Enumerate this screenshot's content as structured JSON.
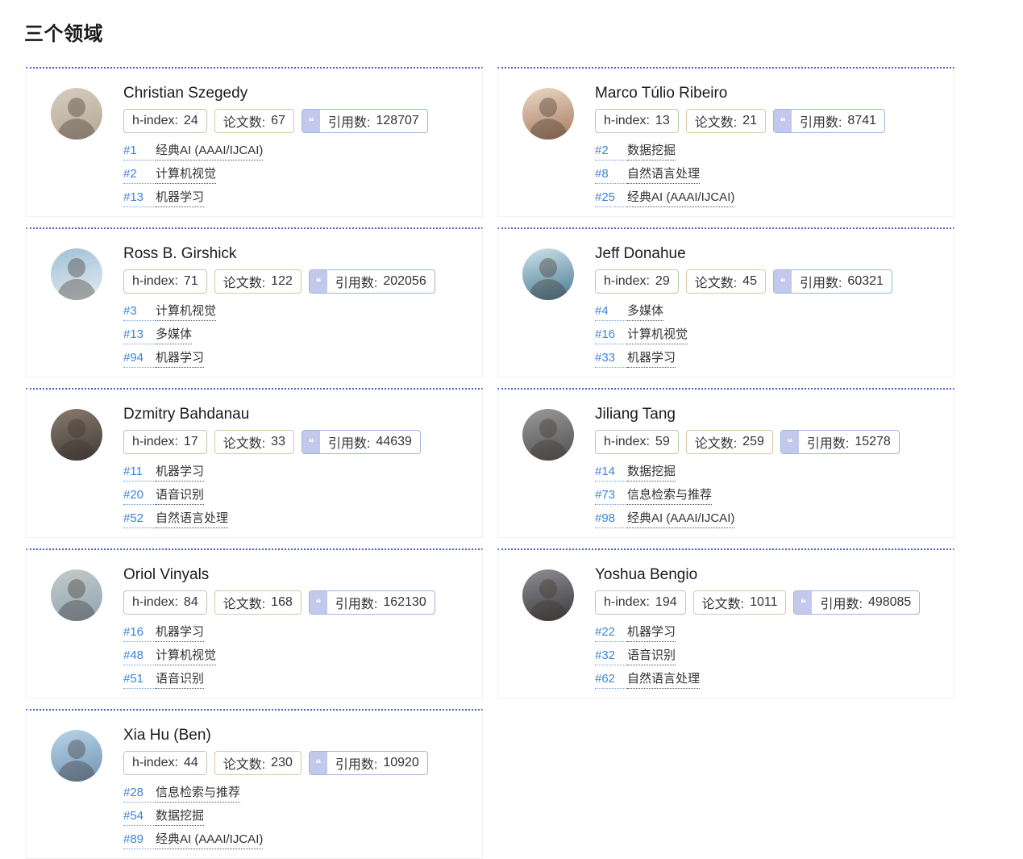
{
  "page": {
    "title": "三个领域"
  },
  "labels": {
    "h_index": "h-index:",
    "papers": "论文数:",
    "citations": "引用数:",
    "quote_icon": "❝"
  },
  "colors": {
    "card_top_border": "#4f5ec7",
    "card_border": "#f1f1f1",
    "h_index_border": "#bcc9ad",
    "papers_border": "#d9c8a3",
    "citations_border": "#9cb8de",
    "citations_icon_bg": "#c2c9ec",
    "rank_link_blue": "#3d84d8"
  },
  "researchers": [
    {
      "name": "Christian Szegedy",
      "h_index": "24",
      "papers": "67",
      "citations": "128707",
      "avatar_colors": [
        "#d8cdc0",
        "#b3a694"
      ],
      "ranks": [
        {
          "no": "#1",
          "field": "经典AI (AAAI/IJCAI)"
        },
        {
          "no": "#2",
          "field": "计算机视觉"
        },
        {
          "no": "#13",
          "field": "机器学习"
        }
      ]
    },
    {
      "name": "Marco Túlio Ribeiro",
      "h_index": "13",
      "papers": "21",
      "citations": "8741",
      "avatar_colors": [
        "#ead9c6",
        "#a87a5e"
      ],
      "ranks": [
        {
          "no": "#2",
          "field": "数据挖掘"
        },
        {
          "no": "#8",
          "field": "自然语言处理"
        },
        {
          "no": "#25",
          "field": "经典AI (AAAI/IJCAI)"
        }
      ]
    },
    {
      "name": "Ross B. Girshick",
      "h_index": "71",
      "papers": "122",
      "citations": "202056",
      "avatar_colors": [
        "#9fc0d8",
        "#e6ecef"
      ],
      "ranks": [
        {
          "no": "#3",
          "field": "计算机视觉"
        },
        {
          "no": "#13",
          "field": "多媒体"
        },
        {
          "no": "#94",
          "field": "机器学习"
        }
      ]
    },
    {
      "name": "Jeff Donahue",
      "h_index": "29",
      "papers": "45",
      "citations": "60321",
      "avatar_colors": [
        "#cfe2ea",
        "#467a92"
      ],
      "ranks": [
        {
          "no": "#4",
          "field": "多媒体"
        },
        {
          "no": "#16",
          "field": "计算机视觉"
        },
        {
          "no": "#33",
          "field": "机器学习"
        }
      ]
    },
    {
      "name": "Dzmitry Bahdanau",
      "h_index": "17",
      "papers": "33",
      "citations": "44639",
      "avatar_colors": [
        "#8a7b6d",
        "#3f3a35"
      ],
      "ranks": [
        {
          "no": "#11",
          "field": "机器学习"
        },
        {
          "no": "#20",
          "field": "语音识别"
        },
        {
          "no": "#52",
          "field": "自然语言处理"
        }
      ]
    },
    {
      "name": "Jiliang Tang",
      "h_index": "59",
      "papers": "259",
      "citations": "15278",
      "avatar_colors": [
        "#9a9a9a",
        "#4f4f4f"
      ],
      "ranks": [
        {
          "no": "#14",
          "field": "数据挖掘"
        },
        {
          "no": "#73",
          "field": "信息检索与推荐"
        },
        {
          "no": "#98",
          "field": "经典AI (AAAI/IJCAI)"
        }
      ]
    },
    {
      "name": "Oriol Vinyals",
      "h_index": "84",
      "papers": "168",
      "citations": "162130",
      "avatar_colors": [
        "#c6cbc6",
        "#8da4b5"
      ],
      "ranks": [
        {
          "no": "#16",
          "field": "机器学习"
        },
        {
          "no": "#48",
          "field": "计算机视觉"
        },
        {
          "no": "#51",
          "field": "语音识别"
        }
      ]
    },
    {
      "name": "Yoshua Bengio",
      "h_index": "194",
      "papers": "1011",
      "citations": "498085",
      "avatar_colors": [
        "#8f8f94",
        "#3a3a3c"
      ],
      "ranks": [
        {
          "no": "#22",
          "field": "机器学习"
        },
        {
          "no": "#32",
          "field": "语音识别"
        },
        {
          "no": "#62",
          "field": "自然语言处理"
        }
      ]
    },
    {
      "name": "Xia Hu (Ben)",
      "h_index": "44",
      "papers": "230",
      "citations": "10920",
      "avatar_colors": [
        "#b9d4e8",
        "#6f94b4"
      ],
      "ranks": [
        {
          "no": "#28",
          "field": "信息检索与推荐"
        },
        {
          "no": "#54",
          "field": "数据挖掘"
        },
        {
          "no": "#89",
          "field": "经典AI (AAAI/IJCAI)"
        }
      ]
    }
  ]
}
